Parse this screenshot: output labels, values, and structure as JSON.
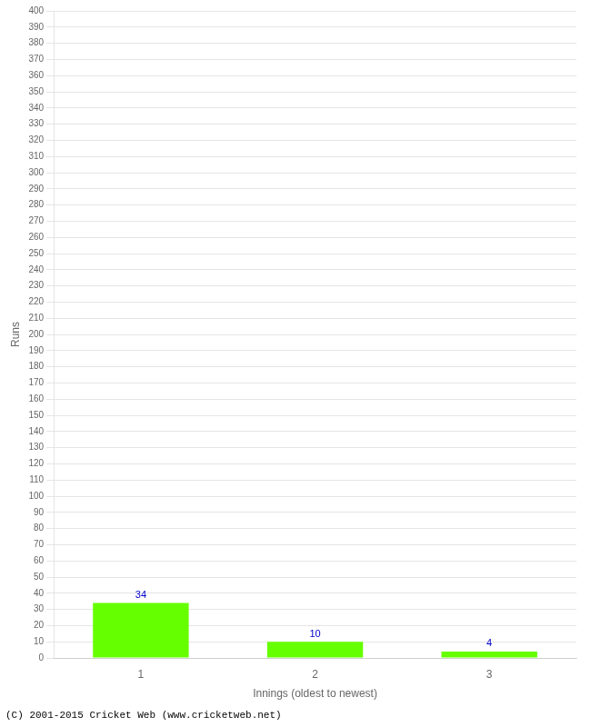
{
  "chart_data": {
    "type": "bar",
    "xlabel": "Innings (oldest to newest)",
    "ylabel": "Runs",
    "categories": [
      "1",
      "2",
      "3"
    ],
    "values": [
      34,
      10,
      4
    ],
    "color": "#66ff00",
    "ylim": [
      0,
      400
    ],
    "yticks": [
      0,
      10,
      20,
      30,
      40,
      50,
      60,
      70,
      80,
      90,
      100,
      110,
      120,
      130,
      140,
      150,
      160,
      170,
      180,
      190,
      200,
      210,
      220,
      230,
      240,
      250,
      260,
      270,
      280,
      290,
      300,
      310,
      320,
      330,
      340,
      350,
      360,
      370,
      380,
      390,
      400
    ],
    "grid": true,
    "data_labels": true,
    "annotations": [
      "(C) 2001-2015 Cricket Web (www.cricketweb.net)"
    ]
  }
}
